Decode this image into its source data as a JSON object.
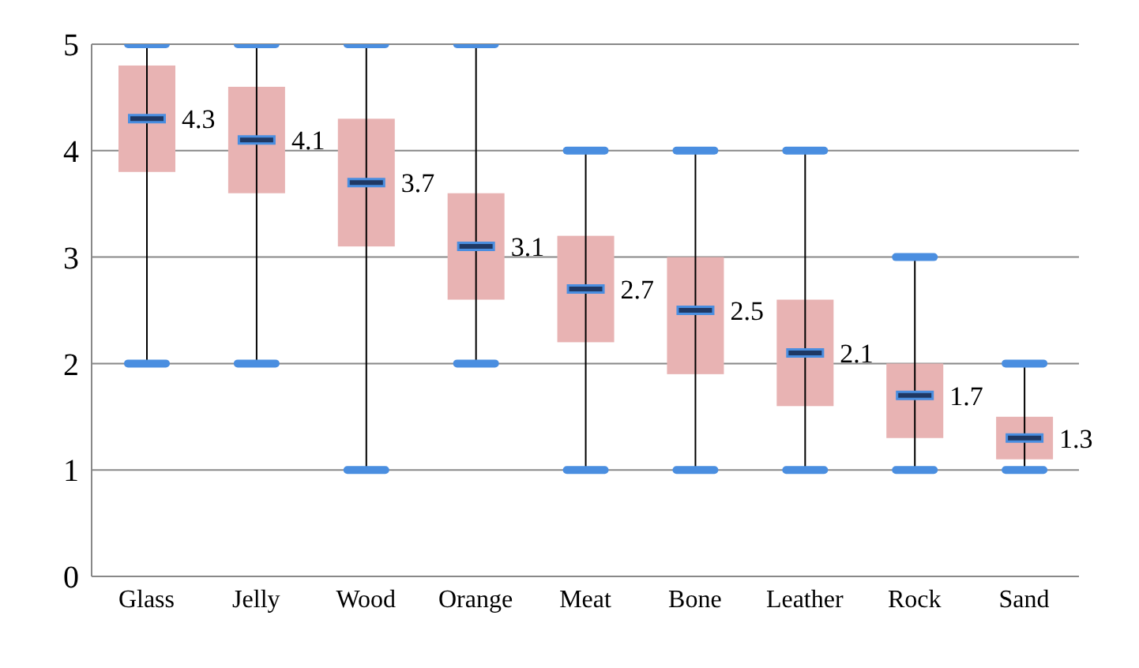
{
  "chart_data": {
    "type": "box",
    "categories": [
      "Glass",
      "Jelly",
      "Wood",
      "Orange",
      "Meat",
      "Bone",
      "Leather",
      "Rock",
      "Sand"
    ],
    "boxes": [
      {
        "low": 2,
        "q1": 3.8,
        "median": 4.3,
        "q3": 4.8,
        "high": 5
      },
      {
        "low": 2,
        "q1": 3.6,
        "median": 4.1,
        "q3": 4.6,
        "high": 5
      },
      {
        "low": 1,
        "q1": 3.1,
        "median": 3.7,
        "q3": 4.3,
        "high": 5
      },
      {
        "low": 2,
        "q1": 2.6,
        "median": 3.1,
        "q3": 3.6,
        "high": 5
      },
      {
        "low": 1,
        "q1": 2.2,
        "median": 2.7,
        "q3": 3.2,
        "high": 4
      },
      {
        "low": 1,
        "q1": 1.9,
        "median": 2.5,
        "q3": 3.0,
        "high": 4
      },
      {
        "low": 1,
        "q1": 1.6,
        "median": 2.1,
        "q3": 2.6,
        "high": 4
      },
      {
        "low": 1,
        "q1": 1.3,
        "median": 1.7,
        "q3": 2.0,
        "high": 3
      },
      {
        "low": 1,
        "q1": 1.1,
        "median": 1.3,
        "q3": 1.5,
        "high": 2
      }
    ],
    "color": "#e8b3b3",
    "ylim": [
      0,
      5
    ],
    "yticks": [
      0,
      1,
      2,
      3,
      4,
      5
    ],
    "grid": "y",
    "annotations": [
      {
        "text": "4.3",
        "x": "Glass",
        "y": 4.3
      },
      {
        "text": "4.1",
        "x": "Jelly",
        "y": 4.1
      },
      {
        "text": "3.7",
        "x": "Wood",
        "y": 3.7
      },
      {
        "text": "3.1",
        "x": "Orange",
        "y": 3.1
      },
      {
        "text": "2.7",
        "x": "Meat",
        "y": 2.7
      },
      {
        "text": "2.5",
        "x": "Bone",
        "y": 2.5
      },
      {
        "text": "2.1",
        "x": "Leather",
        "y": 2.1
      },
      {
        "text": "1.7",
        "x": "Rock",
        "y": 1.7
      },
      {
        "text": "1.3",
        "x": "Sand",
        "y": 1.3
      }
    ]
  }
}
